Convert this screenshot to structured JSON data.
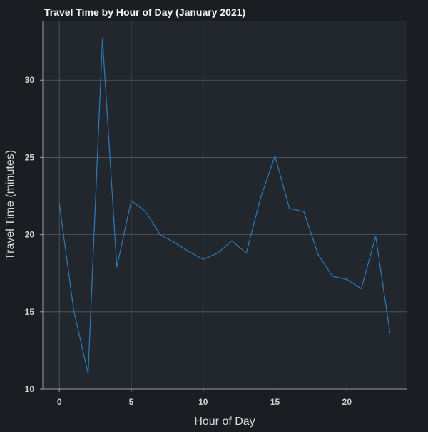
{
  "chart_data": {
    "type": "line",
    "title": "Travel Time by Hour of Day (January 2021)",
    "xlabel": "Hour of Day",
    "ylabel": "Travel Time (minutes)",
    "xlim": [
      -1.15,
      24.15
    ],
    "ylim": [
      10,
      33.8
    ],
    "x_ticks": [
      0,
      5,
      10,
      15,
      20
    ],
    "y_ticks": [
      10,
      15,
      20,
      25,
      30
    ],
    "grid": true,
    "legend": "none",
    "series": [
      {
        "x": [
          0,
          1,
          2,
          3,
          4,
          5,
          6,
          7,
          8,
          9,
          10,
          11,
          12,
          13,
          14,
          15,
          16,
          17,
          18,
          19,
          20,
          21,
          22,
          23
        ],
        "y": [
          22.0,
          15.1,
          11.0,
          32.7,
          17.9,
          22.2,
          21.5,
          20.0,
          19.5,
          18.9,
          18.4,
          18.8,
          19.6,
          18.8,
          22.4,
          25.1,
          21.7,
          21.5,
          18.7,
          17.3,
          17.1,
          16.5,
          19.9,
          13.6
        ],
        "color": "#2b7bb9"
      }
    ]
  },
  "colors": {
    "background": "#1a1d21",
    "plot_background": "#22262d",
    "grid": "#565b63",
    "axis": "#9aa0a6",
    "line": "#2b7bb9",
    "text": "#e6e6e6"
  }
}
